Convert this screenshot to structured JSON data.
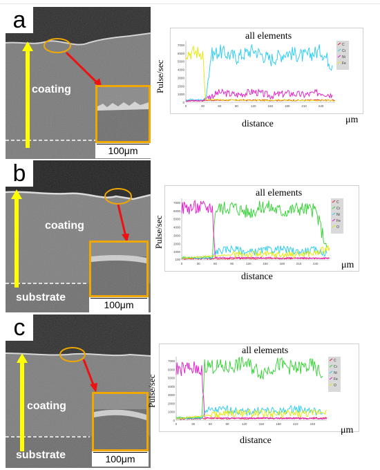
{
  "figure": {
    "panels": [
      {
        "letter": "a",
        "sem_labels": [
          "coating"
        ],
        "scale_bar": "100μm",
        "chart_data": {
          "type": "line",
          "title": "all elements",
          "xlabel": "distance",
          "ylabel": "Pulse/sec",
          "x_unit": "μm",
          "xlim": [
            0,
            265
          ],
          "ylim": [
            0,
            7500
          ],
          "x_ticks": [
            0,
            30,
            60,
            90,
            120,
            150,
            180,
            210,
            240
          ],
          "y_ticks": [
            0,
            1000,
            2000,
            3000,
            4000,
            5000,
            6000,
            7000
          ],
          "legend": [
            "C",
            "Cr",
            "Ni",
            "Fe"
          ],
          "legend_placement": "top-right",
          "series": [
            {
              "name": "C",
              "color": "#e8112d",
              "x": [
                0,
                30,
                35,
                265
              ],
              "values": [
                200,
                200,
                250,
                250
              ]
            },
            {
              "name": "Cr",
              "color": "#21cbf2",
              "x": [
                0,
                30,
                35,
                45,
                60,
                90,
                120,
                150,
                180,
                210,
                240,
                260
              ],
              "values": [
                300,
                300,
                500,
                5800,
                6200,
                5500,
                6400,
                5200,
                6100,
                5600,
                6300,
                4500
              ]
            },
            {
              "name": "Ni",
              "color": "#e514c9",
              "x": [
                0,
                30,
                35,
                60,
                90,
                120,
                150,
                180,
                210,
                240,
                260
              ],
              "values": [
                200,
                200,
                500,
                1200,
                900,
                1300,
                800,
                1100,
                900,
                1200,
                900
              ]
            },
            {
              "name": "Fe",
              "color": "#e6e600",
              "x": [
                0,
                30,
                35,
                265
              ],
              "values": [
                6100,
                6100,
                300,
                200
              ]
            }
          ]
        }
      },
      {
        "letter": "b",
        "sem_labels": [
          "coating",
          "substrate"
        ],
        "scale_bar": "100μm",
        "chart_data": {
          "type": "line",
          "title": "all elements",
          "xlabel": "distance",
          "ylabel": "Pulse/sec",
          "x_unit": "μm",
          "xlim": [
            0,
            265
          ],
          "ylim": [
            0,
            7500
          ],
          "x_ticks": [
            0,
            30,
            60,
            90,
            120,
            150,
            180,
            210,
            240
          ],
          "y_ticks": [
            100,
            1000,
            2000,
            3000,
            4000,
            5000,
            6000,
            7000
          ],
          "legend": [
            "C",
            "Cr",
            "Ni",
            "Fe",
            "O"
          ],
          "legend_placement": "top-right",
          "series": [
            {
              "name": "C",
              "color": "#e8112d",
              "x": [
                0,
                60,
                265
              ],
              "values": [
                150,
                150,
                200
              ]
            },
            {
              "name": "Cr",
              "color": "#2cd12c",
              "x": [
                0,
                55,
                60,
                90,
                120,
                150,
                180,
                210,
                240,
                260
              ],
              "values": [
                300,
                300,
                6200,
                6500,
                5800,
                6600,
                5900,
                6300,
                6000,
                1500
              ]
            },
            {
              "name": "Ni",
              "color": "#21cbf2",
              "x": [
                0,
                55,
                60,
                90,
                120,
                150,
                180,
                210,
                240,
                260
              ],
              "values": [
                200,
                200,
                1000,
                1400,
                900,
                1200,
                1300,
                1000,
                1200,
                800
              ]
            },
            {
              "name": "Fe",
              "color": "#e514c9",
              "x": [
                0,
                55,
                60,
                265
              ],
              "values": [
                6400,
                6400,
                300,
                200
              ]
            },
            {
              "name": "O",
              "color": "#e6e600",
              "x": [
                0,
                60,
                120,
                180,
                240,
                265
              ],
              "values": [
                200,
                500,
                700,
                600,
                800,
                1500
              ]
            }
          ]
        }
      },
      {
        "letter": "c",
        "sem_labels": [
          "coating",
          "substrate"
        ],
        "scale_bar": "100μm",
        "chart_data": {
          "type": "line",
          "title": "all elements",
          "xlabel": "distance",
          "ylabel": "Pulse/sec",
          "x_unit": "μm",
          "xlim": [
            0,
            265
          ],
          "ylim": [
            0,
            7500
          ],
          "x_ticks": [
            0,
            30,
            60,
            90,
            120,
            150,
            180,
            210,
            240
          ],
          "y_ticks": [
            0,
            1000,
            2000,
            3000,
            4000,
            5000,
            6000,
            7000
          ],
          "legend": [
            "C",
            "Cr",
            "Ni",
            "Fe",
            "O"
          ],
          "legend_placement": "top-right",
          "series": [
            {
              "name": "C",
              "color": "#e8112d",
              "x": [
                0,
                45,
                265
              ],
              "values": [
                150,
                200,
                250
              ]
            },
            {
              "name": "Cr",
              "color": "#2cd12c",
              "x": [
                0,
                45,
                50,
                90,
                120,
                150,
                180,
                210,
                240,
                258
              ],
              "values": [
                300,
                300,
                6500,
                6200,
                6800,
                5600,
                6600,
                6100,
                6400,
                5200
              ]
            },
            {
              "name": "Ni",
              "color": "#21cbf2",
              "x": [
                0,
                45,
                50,
                90,
                120,
                150,
                180,
                210,
                240,
                258
              ],
              "values": [
                200,
                200,
                1100,
                1300,
                900,
                1200,
                1000,
                1400,
                1100,
                800
              ]
            },
            {
              "name": "Fe",
              "color": "#e514c9",
              "x": [
                0,
                45,
                50,
                265
              ],
              "values": [
                6100,
                6100,
                300,
                200
              ]
            },
            {
              "name": "O",
              "color": "#e6e600",
              "x": [
                0,
                60,
                120,
                180,
                240,
                265
              ],
              "values": [
                200,
                600,
                900,
                700,
                800,
                1200
              ]
            }
          ]
        }
      }
    ]
  }
}
